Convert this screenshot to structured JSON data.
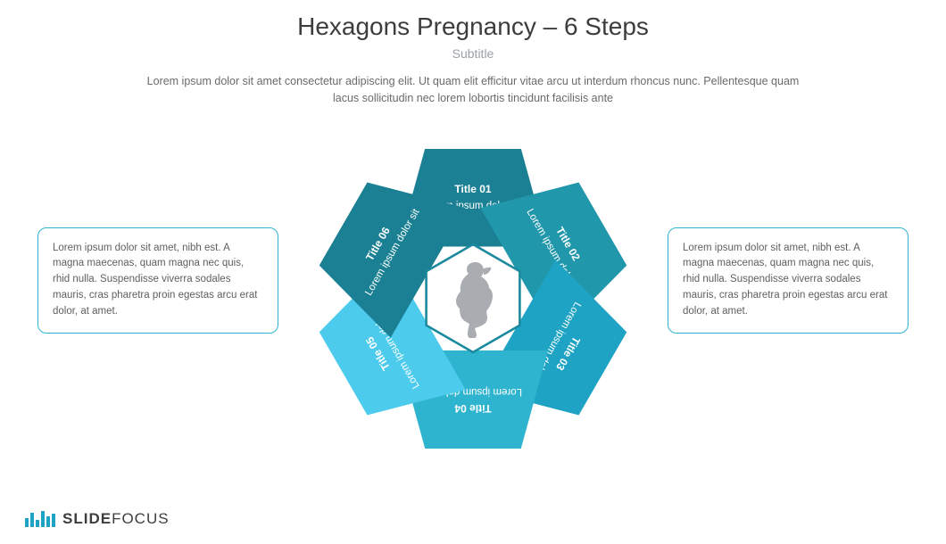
{
  "title": "Hexagons Pregnancy – 6 Steps",
  "subtitle": "Subtitle",
  "description": "Lorem ipsum dolor sit amet consectetur adipiscing elit. Ut quam elit efficitur vitae arcu ut interdum rhoncus nunc. Pellentesque quam lacus sollicitudin nec lorem lobortis tincidunt facilisis ante",
  "center_icon_color": "#a9adb1",
  "hex_border_color": "#1b8a9e",
  "segment_gap_deg": 2,
  "segments": [
    {
      "title": "Title 01",
      "text": "Lorem ipsum dolor sit",
      "color": "#1b8093",
      "angle": 0
    },
    {
      "title": "Title 02",
      "text": "Lorem ipsum dolor sit",
      "color": "#2197ac",
      "angle": 60
    },
    {
      "title": "Title 03",
      "text": "Lorem ipsum dolor sit",
      "color": "#1fa3c4",
      "angle": 120
    },
    {
      "title": "Title 04",
      "text": "Lorem ipsum dolor sit",
      "color": "#2fb4cf",
      "angle": 180
    },
    {
      "title": "Title 05",
      "text": "Lorem ipsum dolor sit",
      "color": "#4dcbec",
      "angle": 240
    },
    {
      "title": "Title 06",
      "text": "Lorem ipsum dolor sit",
      "color": "#1b8093",
      "angle": 300
    }
  ],
  "callout_left": {
    "text": "Lorem ipsum dolor sit amet, nibh est. A magna maecenas, quam magna nec quis, rhid nulla. Suspendisse viverra sodales mauris, cras pharetra proin egestas arcu erat dolor, at amet.",
    "border_color": "#2fb4cf"
  },
  "callout_right": {
    "text": "Lorem ipsum dolor sit amet, nibh est. A magna maecenas, quam magna nec quis, rhid nulla. Suspendisse viverra sodales mauris, cras pharetra proin egestas arcu erat dolor, at amet.",
    "border_color": "#2fb4cf"
  },
  "logo": {
    "brand_bold": "SLIDE",
    "brand_light": "FOCUS",
    "bar_color": "#1fa3c4"
  }
}
